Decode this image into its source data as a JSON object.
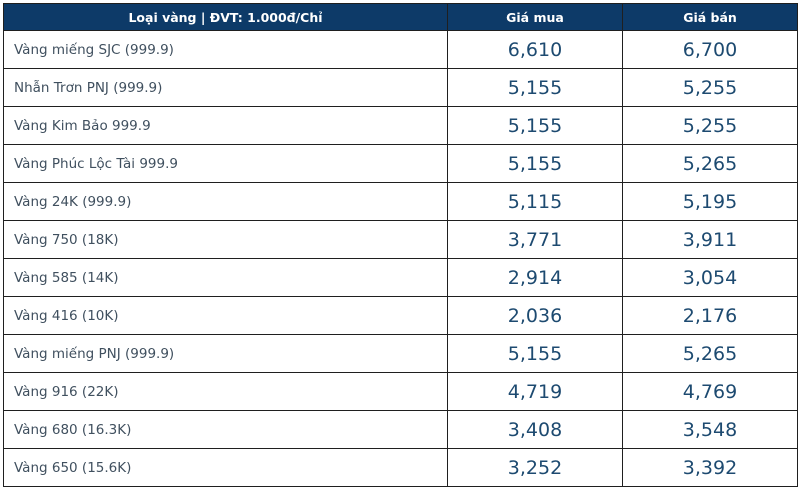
{
  "colors": {
    "header_bg": "#0d3a68",
    "header_text": "#ffffff",
    "label_text": "#40505f",
    "price_text": "#1d4a70",
    "border": "#1f1f1f",
    "row_bg": "#ffffff"
  },
  "table": {
    "unit_note": "ĐVT: 1.000đ/Chỉ",
    "columns": [
      {
        "label": "Loại vàng | ĐVT: 1.000đ/Chỉ"
      },
      {
        "label": "Giá mua"
      },
      {
        "label": "Giá bán"
      }
    ],
    "rows": [
      {
        "type": "Vàng miếng SJC (999.9)",
        "buy": "6,610",
        "sell": "6,700"
      },
      {
        "type": "Nhẫn Trơn PNJ (999.9)",
        "buy": "5,155",
        "sell": "5,255"
      },
      {
        "type": "Vàng Kim Bảo 999.9",
        "buy": "5,155",
        "sell": "5,255"
      },
      {
        "type": "Vàng Phúc Lộc Tài 999.9",
        "buy": "5,155",
        "sell": "5,265"
      },
      {
        "type": "Vàng 24K (999.9)",
        "buy": "5,115",
        "sell": "5,195"
      },
      {
        "type": "Vàng 750 (18K)",
        "buy": "3,771",
        "sell": "3,911"
      },
      {
        "type": "Vàng 585 (14K)",
        "buy": "2,914",
        "sell": "3,054"
      },
      {
        "type": "Vàng 416 (10K)",
        "buy": "2,036",
        "sell": "2,176"
      },
      {
        "type": "Vàng miếng PNJ (999.9)",
        "buy": "5,155",
        "sell": "5,265"
      },
      {
        "type": "Vàng 916 (22K)",
        "buy": "4,719",
        "sell": "4,769"
      },
      {
        "type": "Vàng 680 (16.3K)",
        "buy": "3,408",
        "sell": "3,548"
      },
      {
        "type": "Vàng 650 (15.6K)",
        "buy": "3,252",
        "sell": "3,392"
      }
    ]
  },
  "chart_data": {
    "type": "table",
    "columns": [
      "Loại vàng | ĐVT: 1.000đ/Chỉ",
      "Giá mua",
      "Giá bán"
    ],
    "unit": "1.000đ/Chỉ",
    "categories": [
      "Vàng miếng SJC (999.9)",
      "Nhẫn Trơn PNJ (999.9)",
      "Vàng Kim Bảo 999.9",
      "Vàng Phúc Lộc Tài 999.9",
      "Vàng 24K (999.9)",
      "Vàng 750 (18K)",
      "Vàng 585 (14K)",
      "Vàng 416 (10K)",
      "Vàng miếng PNJ (999.9)",
      "Vàng 916 (22K)",
      "Vàng 680 (16.3K)",
      "Vàng 650 (15.6K)"
    ],
    "series": [
      {
        "name": "Giá mua",
        "values": [
          6610,
          5155,
          5155,
          5155,
          5115,
          3771,
          2914,
          2036,
          5155,
          4719,
          3408,
          3252
        ]
      },
      {
        "name": "Giá bán",
        "values": [
          6700,
          5255,
          5255,
          5265,
          5195,
          3911,
          3054,
          2176,
          5265,
          4769,
          3548,
          3392
        ]
      }
    ],
    "legend_position": "none",
    "grid": true
  }
}
